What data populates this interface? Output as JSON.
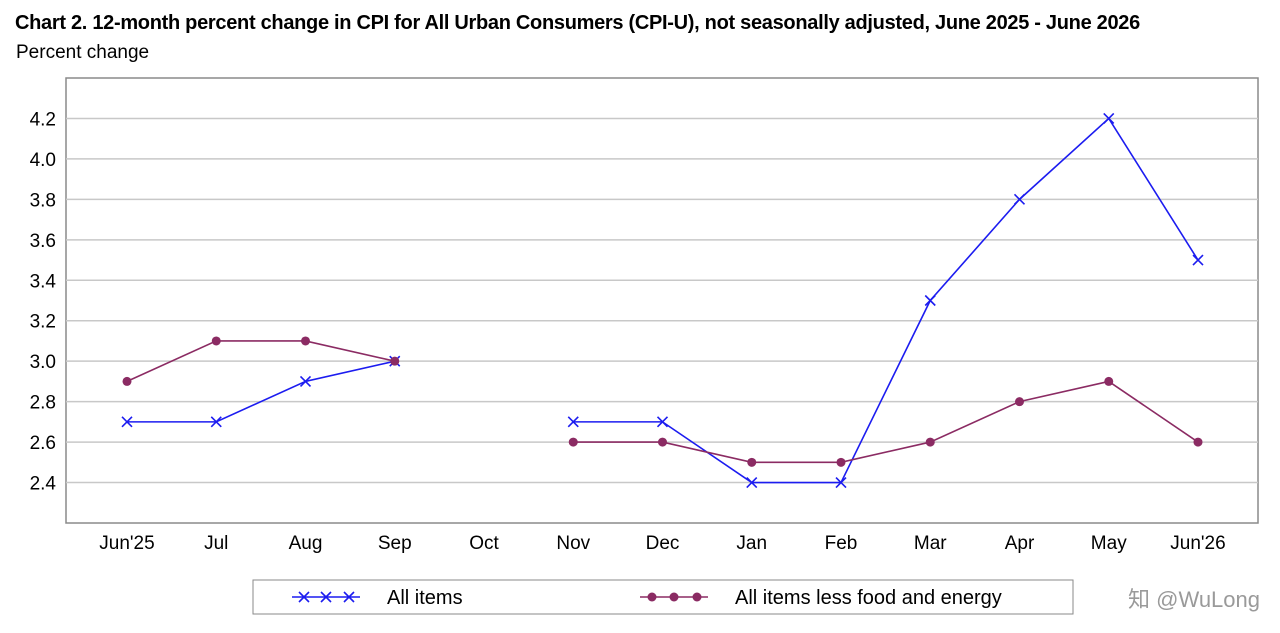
{
  "chart_data": {
    "type": "line",
    "title": "Chart 2. 12-month percent change in CPI for All Urban Consumers (CPI-U), not seasonally adjusted, June 2025 - June 2026",
    "ylabel": "Percent change",
    "xlabel": "",
    "categories": [
      "Jun'25",
      "Jul",
      "Aug",
      "Sep",
      "Oct",
      "Nov",
      "Dec",
      "Jan",
      "Feb",
      "Mar",
      "Apr",
      "May",
      "Jun'26"
    ],
    "ylim": [
      2.2,
      4.4
    ],
    "yticks": [
      "2.4",
      "2.6",
      "2.8",
      "3.0",
      "3.2",
      "3.4",
      "3.6",
      "3.8",
      "4.0",
      "4.2"
    ],
    "grid": true,
    "legend_position": "bottom",
    "series": [
      {
        "name": "All items",
        "color": "#1c1cf0",
        "marker": "x",
        "values": [
          2.7,
          2.7,
          2.9,
          3.0,
          null,
          2.7,
          2.7,
          2.4,
          2.4,
          3.3,
          3.8,
          4.2,
          3.5
        ]
      },
      {
        "name": "All items less food and energy",
        "color": "#8b2b63",
        "marker": "circle",
        "values": [
          2.9,
          3.1,
          3.1,
          3.0,
          null,
          2.6,
          2.6,
          2.5,
          2.5,
          2.6,
          2.8,
          2.9,
          2.6
        ]
      }
    ]
  },
  "watermark": "知 @WuLong"
}
